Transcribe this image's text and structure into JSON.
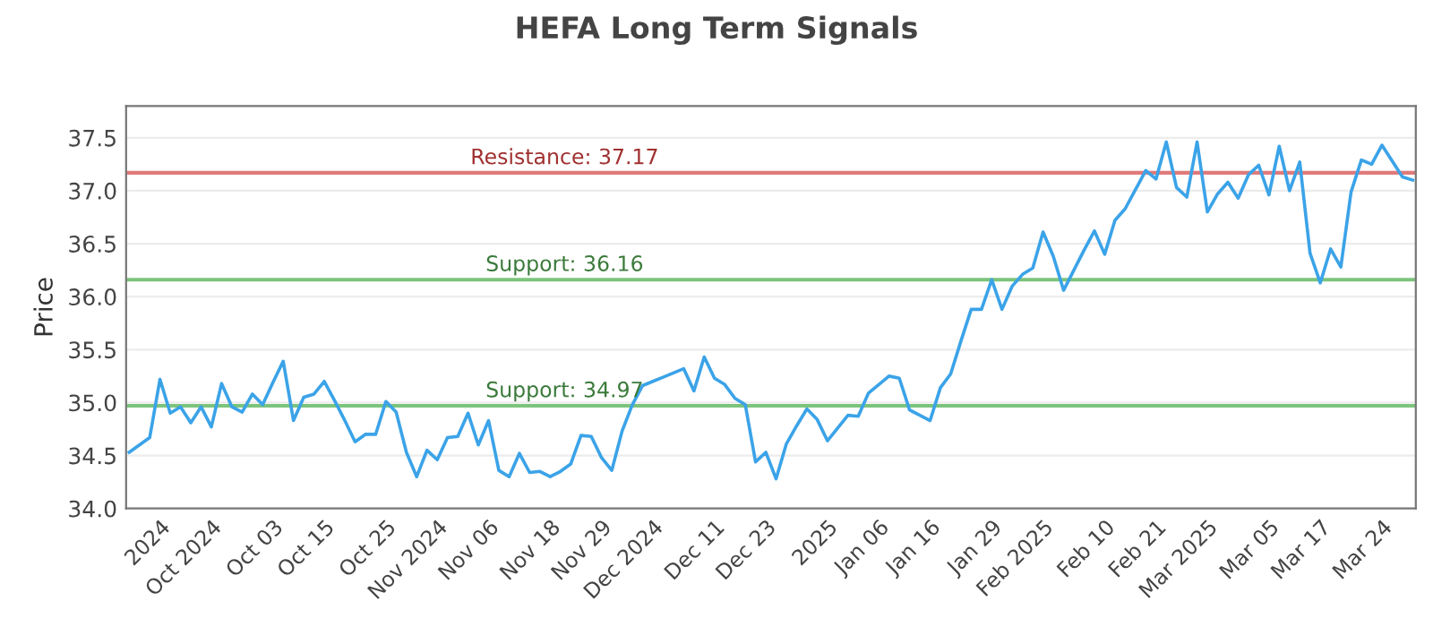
{
  "chart_data": {
    "type": "line",
    "title": "HEFA Long Term Signals",
    "ylabel": "Price",
    "categories": [
      null,
      null,
      null,
      "2024",
      null,
      null,
      null,
      null,
      "Oct 2024",
      null,
      null,
      null,
      null,
      null,
      "Oct 03",
      null,
      null,
      null,
      null,
      "Oct 15",
      null,
      null,
      null,
      null,
      null,
      "Oct 25",
      null,
      null,
      null,
      null,
      "Nov 2024",
      null,
      null,
      null,
      null,
      "Nov 06",
      null,
      null,
      null,
      null,
      null,
      "Nov 18",
      null,
      null,
      null,
      null,
      "Nov 29",
      null,
      null,
      null,
      null,
      "Dec 2024",
      null,
      null,
      null,
      null,
      null,
      "Dec 11",
      null,
      null,
      null,
      null,
      "Dec 23",
      null,
      null,
      null,
      null,
      null,
      "2025",
      null,
      null,
      null,
      null,
      "Jan 06",
      null,
      null,
      null,
      null,
      "Jan 16",
      null,
      null,
      null,
      null,
      null,
      "Jan 29",
      null,
      null,
      null,
      null,
      "Feb 2025",
      null,
      null,
      null,
      null,
      null,
      "Feb 10",
      null,
      null,
      null,
      null,
      "Feb 21",
      null,
      null,
      null,
      null,
      "Mar 2025",
      null,
      null,
      null,
      null,
      null,
      "Mar 05",
      null,
      null,
      null,
      null,
      "Mar 17",
      null,
      null,
      null,
      null,
      null,
      "Mar 24",
      null,
      null,
      null
    ],
    "series": [
      {
        "color": "#3ba3e8",
        "values": [
          34.53,
          34.6,
          34.67,
          35.22,
          34.9,
          34.96,
          34.81,
          34.96,
          34.77,
          35.18,
          34.96,
          34.91,
          35.08,
          34.98,
          35.19,
          35.39,
          34.83,
          35.05,
          35.08,
          35.2,
          35.02,
          34.83,
          34.63,
          34.7,
          34.7,
          35.01,
          34.91,
          34.53,
          34.3,
          34.55,
          34.46,
          34.67,
          34.68,
          34.9,
          34.6,
          34.83,
          34.36,
          34.3,
          34.52,
          34.34,
          34.35,
          34.3,
          34.35,
          34.42,
          34.69,
          34.68,
          34.48,
          34.36,
          34.73,
          34.98,
          35.16,
          35.2,
          35.24,
          35.28,
          35.32,
          35.11,
          35.43,
          35.23,
          35.17,
          35.04,
          34.98,
          34.44,
          34.53,
          34.28,
          34.61,
          34.78,
          34.94,
          34.84,
          34.64,
          34.76,
          34.88,
          34.87,
          35.09,
          35.17,
          35.25,
          35.23,
          34.93,
          34.88,
          34.83,
          35.14,
          35.27,
          35.58,
          35.88,
          35.88,
          36.16,
          35.88,
          36.1,
          36.21,
          36.27,
          36.61,
          36.38,
          36.06,
          36.25,
          36.44,
          36.62,
          36.4,
          36.72,
          36.83,
          37.01,
          37.19,
          37.11,
          37.46,
          37.03,
          36.94,
          37.46,
          36.8,
          36.97,
          37.08,
          36.93,
          37.15,
          37.24,
          36.96,
          37.42,
          37.0,
          37.27,
          36.41,
          36.13,
          36.45,
          36.28,
          36.99,
          37.29,
          37.25,
          37.43,
          37.28,
          37.13,
          37.1
        ]
      }
    ],
    "ylim": [
      34.0,
      37.8
    ],
    "yticks": [
      {
        "value": 34.0,
        "label": "34.0"
      },
      {
        "value": 34.5,
        "label": "34.5"
      },
      {
        "value": 35.0,
        "label": "35.0"
      },
      {
        "value": 35.5,
        "label": "35.5"
      },
      {
        "value": 36.0,
        "label": "36.0"
      },
      {
        "value": 36.5,
        "label": "36.5"
      },
      {
        "value": 37.0,
        "label": "37.0"
      },
      {
        "value": 37.5,
        "label": "37.5"
      }
    ],
    "grid": "y",
    "marker": "none",
    "line_style": "solid",
    "ref_lines": [
      {
        "axis": "y",
        "value": 37.17,
        "label": "Resistance: 37.17",
        "color": "#e07a7a"
      },
      {
        "axis": "y",
        "value": 36.16,
        "label": "Support: 36.16",
        "color": "#7cc47c"
      },
      {
        "axis": "y",
        "value": 34.97,
        "label": "Support: 34.97",
        "color": "#7cc47c"
      }
    ]
  }
}
